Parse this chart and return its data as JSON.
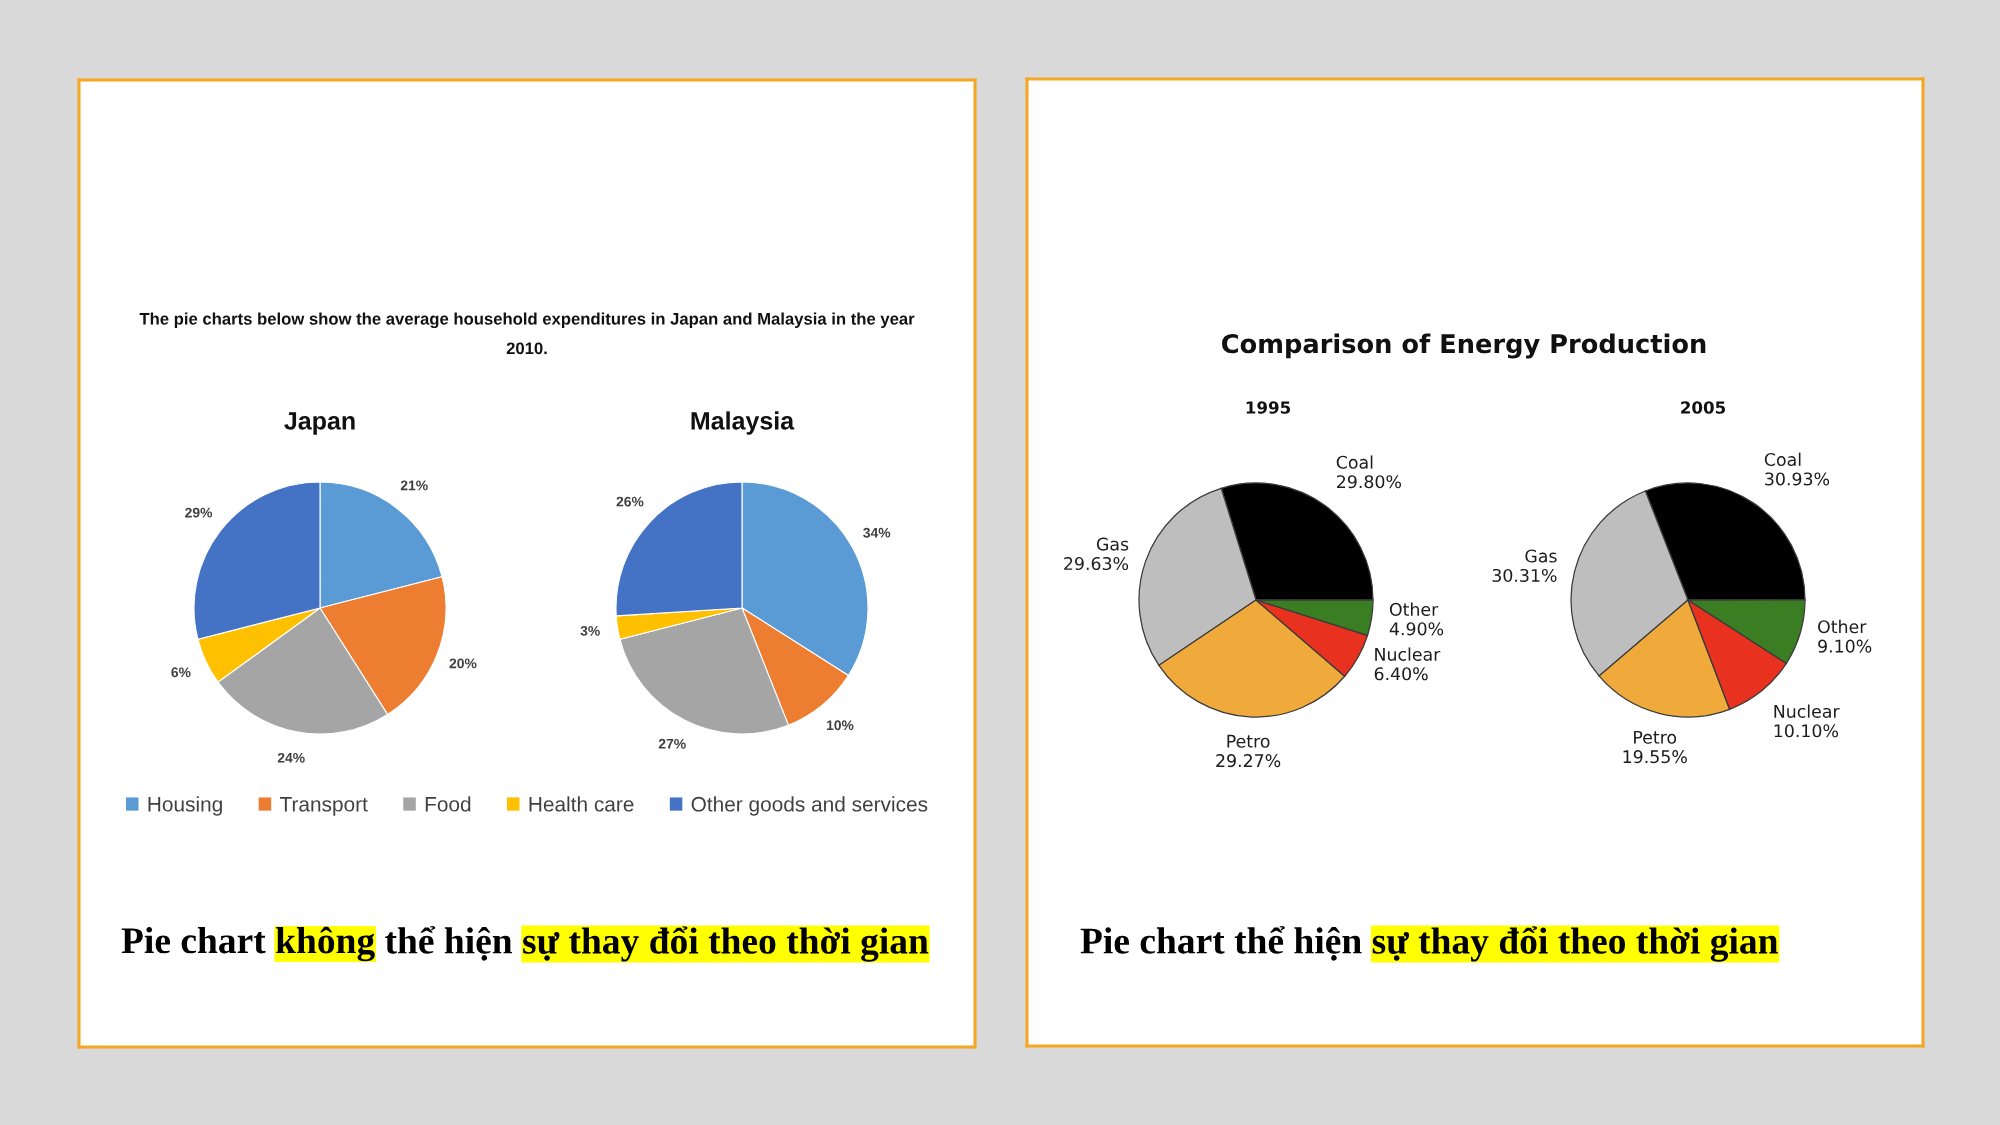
{
  "chart_data": [
    {
      "type": "pie",
      "title": "The pie charts below show the average household expenditures in Japan and Malaysia in the year\n2010.",
      "categories": [
        "Housing",
        "Transport",
        "Food",
        "Health care",
        "Other goods and services"
      ],
      "colors": [
        "#5b9bd5",
        "#ed7d31",
        "#a5a5a5",
        "#ffc000",
        "#4472c4"
      ],
      "legend": "bottom",
      "series": [
        {
          "name": "Japan",
          "values": [
            21,
            20,
            24,
            6,
            29
          ],
          "value_labels": [
            "21%",
            "20%",
            "24%",
            "6%",
            "29%"
          ]
        },
        {
          "name": "Malaysia",
          "values": [
            34,
            10,
            27,
            3,
            26
          ],
          "value_labels": [
            "34%",
            "10%",
            "27%",
            "3%",
            "26%"
          ]
        }
      ],
      "annotations": [
        "Pie chart",
        "không",
        "thể hiện",
        "sự thay đổi theo thời gian"
      ]
    },
    {
      "type": "pie",
      "title": "Comparison of Energy Production",
      "categories": [
        "Coal",
        "Gas",
        "Petro",
        "Nuclear",
        "Other"
      ],
      "colors": [
        "#000000",
        "#bebebe",
        "#f0aa3c",
        "#e8311f",
        "#3a7d22"
      ],
      "series": [
        {
          "name": "1995",
          "values": [
            29.8,
            29.63,
            29.27,
            6.4,
            4.9
          ],
          "value_labels": [
            "29.80%",
            "29.63%",
            "29.27%",
            "6.40%",
            "4.90%"
          ]
        },
        {
          "name": "2005",
          "values": [
            30.93,
            30.31,
            19.55,
            10.1,
            9.1
          ],
          "value_labels": [
            "30.93%",
            "30.31%",
            "19.55%",
            "10.10%",
            "9.10%"
          ]
        }
      ],
      "annotations": [
        "Pie chart thể hiện",
        "sự thay đổi theo thời gian"
      ]
    }
  ]
}
